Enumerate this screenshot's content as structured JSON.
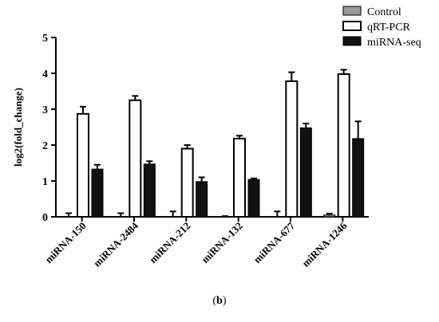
{
  "caption": {
    "open": "(",
    "letter": "b",
    "close": ")"
  },
  "chart_data": {
    "type": "bar",
    "title": "",
    "xlabel": "",
    "ylabel": "log2(fold_change)",
    "ylim": [
      0,
      5
    ],
    "yticks": [
      "0",
      "1",
      "2",
      "3",
      "4",
      "5"
    ],
    "categories": [
      "miRNA-150",
      "miRNA-2484",
      "miRNA-212",
      "miRNA-132",
      "miRNA-677",
      "miRNA-1246"
    ],
    "legend_position": "top-right",
    "error_bars": true,
    "series": [
      {
        "name": "Control",
        "color": "#999999",
        "values": [
          0.0,
          0.0,
          0.0,
          0.0,
          0.0,
          0.05
        ],
        "errors": [
          0.1,
          0.1,
          0.15,
          0.02,
          0.15,
          0.04
        ]
      },
      {
        "name": "qRT-PCR",
        "color": "#ffffff",
        "values": [
          2.87,
          3.25,
          1.9,
          2.18,
          3.78,
          3.98
        ],
        "errors": [
          0.2,
          0.12,
          0.1,
          0.08,
          0.25,
          0.12
        ]
      },
      {
        "name": "miRNA-seq",
        "color": "#111111",
        "values": [
          1.33,
          1.47,
          0.98,
          1.04,
          2.48,
          2.18
        ],
        "errors": [
          0.12,
          0.08,
          0.12,
          0.03,
          0.12,
          0.48
        ]
      }
    ]
  }
}
